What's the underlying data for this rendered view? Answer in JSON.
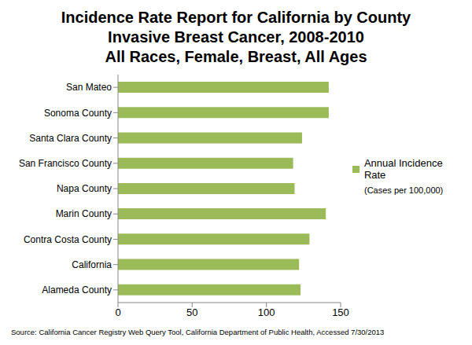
{
  "chart_data": {
    "type": "bar",
    "orientation": "horizontal",
    "title": "Incidence Rate Report for California by County\nInvasive Breast Cancer, 2008-2010\nAll Races, Female, Breast, All Ages",
    "categories": [
      "San Mateo",
      "Sonoma County",
      "Santa Clara County",
      "San Francisco County",
      "Napa County",
      "Marin County",
      "Contra Costa County",
      "California",
      "Alameda County"
    ],
    "series": [
      {
        "name": "Annual Incidence Rate",
        "color": "#9bbb59",
        "values": [
          142,
          142,
          124,
          118,
          119,
          140,
          129,
          122,
          123
        ]
      }
    ],
    "xlim": [
      0,
      150
    ],
    "xticks": [
      0,
      50,
      100,
      150
    ],
    "grid": false,
    "legend": "right",
    "legend_note": "(Cases per 100,000)",
    "source": "Source: California Cancer Registry Web Query Tool, California Department of Public Health, Accessed 7/30/2013"
  }
}
